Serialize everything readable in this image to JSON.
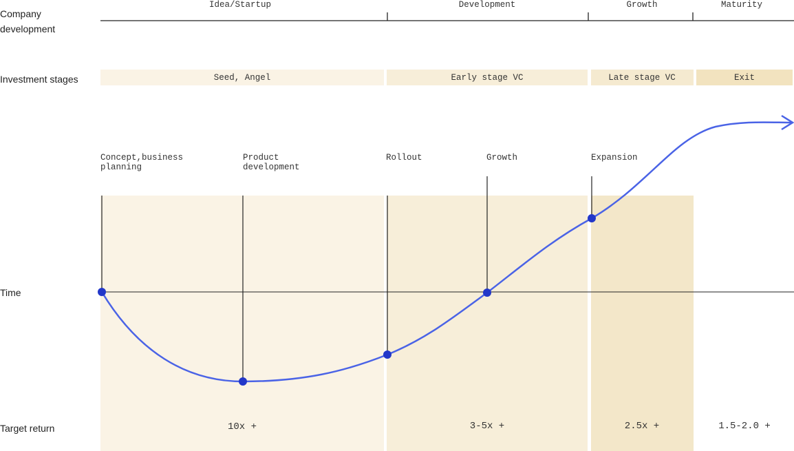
{
  "left_labels": {
    "company": "Company development",
    "investment": "Investment stages",
    "time": "Time",
    "target": "Target return"
  },
  "company_stages": [
    "Idea/Startup",
    "Development",
    "Growth",
    "Maturity"
  ],
  "investment_stages": [
    "Seed, Angel",
    "Early stage VC",
    "Late stage VC",
    "Exit"
  ],
  "milestones": [
    "Concept,business planning",
    "Product development",
    "Rollout",
    "Growth",
    "Expansion"
  ],
  "target_returns": [
    "10x +",
    "3-5x +",
    "2.5x +",
    "1.5-2.0 +"
  ]
}
